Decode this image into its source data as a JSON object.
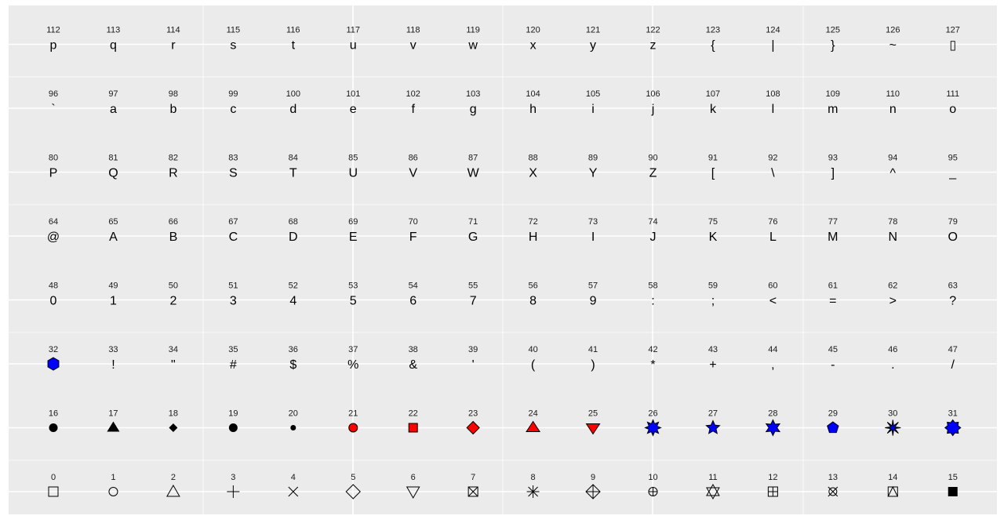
{
  "chart_data": {
    "type": "scatter",
    "title": "",
    "xlabel": "",
    "ylabel": "",
    "grid": true,
    "legend": "none",
    "colors": {
      "panel": "#ebebeb",
      "grid": "#ffffff",
      "red": "#ff0000",
      "blue": "#0000ff",
      "black": "#000000"
    },
    "rows": [
      {
        "numbers": [
          112,
          113,
          114,
          115,
          116,
          117,
          118,
          119,
          120,
          121,
          122,
          123,
          124,
          125,
          126,
          127
        ],
        "glyphs": [
          "p",
          "q",
          "r",
          "s",
          "t",
          "u",
          "v",
          "w",
          "x",
          "y",
          "z",
          "{",
          "|",
          "}",
          "~",
          "▯"
        ]
      },
      {
        "numbers": [
          96,
          97,
          98,
          99,
          100,
          101,
          102,
          103,
          104,
          105,
          106,
          107,
          108,
          109,
          110,
          111
        ],
        "glyphs": [
          "`",
          "a",
          "b",
          "c",
          "d",
          "e",
          "f",
          "g",
          "h",
          "i",
          "j",
          "k",
          "l",
          "m",
          "n",
          "o"
        ]
      },
      {
        "numbers": [
          80,
          81,
          82,
          83,
          84,
          85,
          86,
          87,
          88,
          89,
          90,
          91,
          92,
          93,
          94,
          95
        ],
        "glyphs": [
          "P",
          "Q",
          "R",
          "S",
          "T",
          "U",
          "V",
          "W",
          "X",
          "Y",
          "Z",
          "[",
          "\\",
          "]",
          "^",
          "_"
        ]
      },
      {
        "numbers": [
          64,
          65,
          66,
          67,
          68,
          69,
          70,
          71,
          72,
          73,
          74,
          75,
          76,
          77,
          78,
          79
        ],
        "glyphs": [
          "@",
          "A",
          "B",
          "C",
          "D",
          "E",
          "F",
          "G",
          "H",
          "I",
          "J",
          "K",
          "L",
          "M",
          "N",
          "O"
        ]
      },
      {
        "numbers": [
          48,
          49,
          50,
          51,
          52,
          53,
          54,
          55,
          56,
          57,
          58,
          59,
          60,
          61,
          62,
          63
        ],
        "glyphs": [
          "0",
          "1",
          "2",
          "3",
          "4",
          "5",
          "6",
          "7",
          "8",
          "9",
          ":",
          ";",
          "<",
          "=",
          ">",
          "?"
        ]
      },
      {
        "numbers": [
          32,
          33,
          34,
          35,
          36,
          37,
          38,
          39,
          40,
          41,
          42,
          43,
          44,
          45,
          46,
          47
        ],
        "glyphs": [
          "hexagon",
          "!",
          "\"",
          "#",
          "$",
          "%",
          "&",
          "'",
          "(",
          ")",
          "*",
          "+",
          ",",
          "-",
          ".",
          "/"
        ]
      },
      {
        "numbers": [
          16,
          17,
          18,
          19,
          20,
          21,
          22,
          23,
          24,
          25,
          26,
          27,
          28,
          29,
          30,
          31
        ],
        "glyphs": [
          "filled-circle",
          "filled-triangle",
          "filled-diamond-small",
          "filled-circle",
          "filled-circle-small",
          "red-circle",
          "red-square",
          "red-diamond",
          "red-triangle-up",
          "red-triangle-down",
          "blue-star8",
          "blue-star5",
          "blue-star6",
          "blue-pentagon",
          "blue-asterisk-star",
          "blue-octagram"
        ]
      },
      {
        "numbers": [
          0,
          1,
          2,
          3,
          4,
          5,
          6,
          7,
          8,
          9,
          10,
          11,
          12,
          13,
          14,
          15
        ],
        "glyphs": [
          "open-square",
          "open-circle",
          "open-triangle",
          "plus",
          "cross",
          "open-diamond",
          "open-triangle-down",
          "square-cross",
          "asterisk",
          "diamond-plus",
          "circle-plus",
          "star-of-david",
          "square-plus",
          "circle-cross",
          "square-triangle",
          "filled-square"
        ]
      }
    ]
  }
}
